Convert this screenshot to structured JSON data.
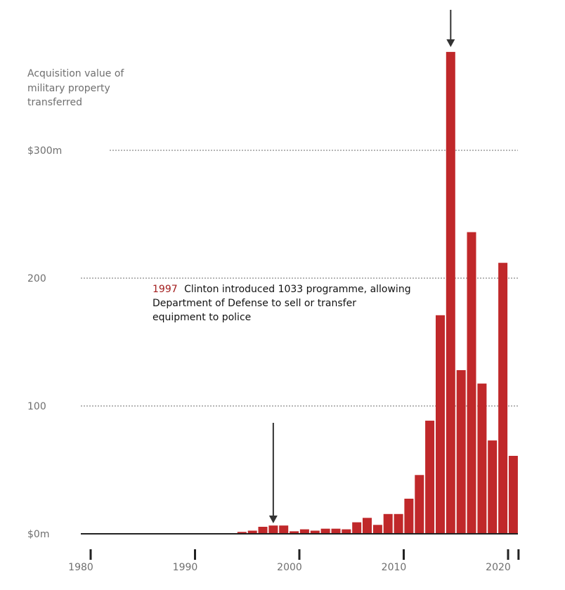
{
  "chart_data": {
    "type": "bar",
    "ylabel_lines": [
      "Acquisition value of",
      "military property",
      "transferred"
    ],
    "y_ticks": [
      {
        "value": 300,
        "label": "$300m"
      },
      {
        "value": 200,
        "label": "200"
      },
      {
        "value": 100,
        "label": "100"
      },
      {
        "value": 0,
        "label": "$0m"
      }
    ],
    "x_ticks": [
      {
        "value": 1980,
        "label": "1980"
      },
      {
        "value": 1990,
        "label": "1990"
      },
      {
        "value": 2000,
        "label": "2000"
      },
      {
        "value": 2010,
        "label": "2010"
      },
      {
        "value": 2020,
        "label": "2020"
      }
    ],
    "xlim": [
      1980,
      2021
    ],
    "ylim": [
      0,
      380
    ],
    "grid": true,
    "colors": {
      "bar": "#c0282a",
      "annotation_year": "#a31d1d",
      "text": "#6f6f6f"
    },
    "x": [
      1994,
      1995,
      1996,
      1997,
      1998,
      1999,
      2000,
      2001,
      2002,
      2003,
      2004,
      2005,
      2006,
      2007,
      2008,
      2009,
      2010,
      2011,
      2012,
      2013,
      2014,
      2015,
      2016,
      2017,
      2018,
      2019,
      2020
    ],
    "values": [
      1.5,
      2.5,
      5.5,
      6.5,
      6.5,
      2,
      3.5,
      2.5,
      4,
      4,
      3.5,
      9,
      12.5,
      7,
      15.5,
      15.5,
      27.5,
      46,
      88.5,
      171,
      377,
      128,
      236,
      117.5,
      73,
      212,
      61
    ],
    "annotations": [
      {
        "x": 1997.5,
        "year_label": "1997",
        "text_lines": [
          "Clinton introduced 1033 programme, allowing",
          "Department of Defense to sell or transfer",
          "equipment to police"
        ]
      },
      {
        "x": 2014
      }
    ]
  }
}
